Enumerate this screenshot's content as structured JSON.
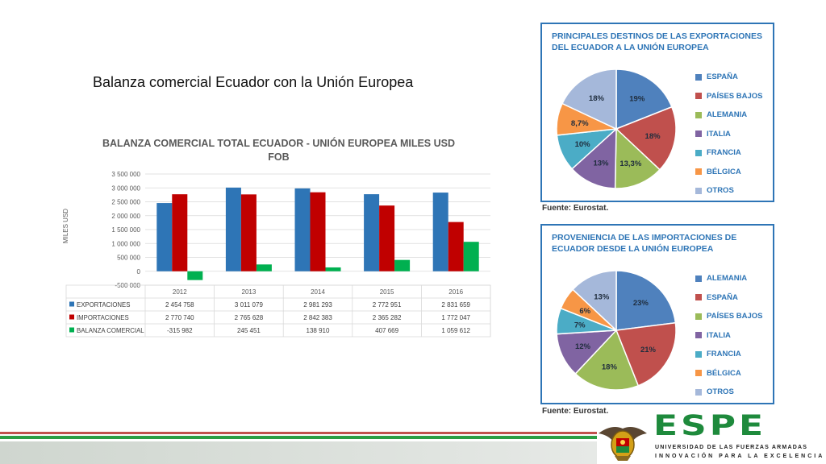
{
  "slide": {
    "title": "Balanza comercial Ecuador con la Unión Europea"
  },
  "colors": {
    "exportaciones": "#2e75b6",
    "importaciones": "#c00000",
    "balanza": "#00b050",
    "panel_border": "#2e75b6",
    "espe_green": "#1e8a3c"
  },
  "chart_data": [
    {
      "type": "bar",
      "title": "BALANZA COMERCIAL TOTAL ECUADOR - UNIÓN EUROPEA MILES USD FOB",
      "ylabel": "MILES USD",
      "xlabel": "",
      "ylim": [
        -500000,
        3500000
      ],
      "yticks": [
        "3 500 000",
        "3 000 000",
        "2 500 000",
        "2 000 000",
        "1 500 000",
        "1 000 000",
        "500 000",
        "0",
        "-500 000"
      ],
      "ytick_values": [
        3500000,
        3000000,
        2500000,
        2000000,
        1500000,
        1000000,
        500000,
        0,
        -500000
      ],
      "categories": [
        "2012",
        "2013",
        "2014",
        "2015",
        "2016"
      ],
      "series": [
        {
          "name": "EXPORTACIONES",
          "values": [
            2454758,
            3011079,
            2981293,
            2772951,
            2831659
          ],
          "labels": [
            "2 454 758",
            "3 011 079",
            "2 981 293",
            "2 772 951",
            "2 831 659"
          ]
        },
        {
          "name": "IMPORTACIONES",
          "values": [
            2770740,
            2765628,
            2842383,
            2365282,
            1772047
          ],
          "labels": [
            "2 770 740",
            "2 765 628",
            "2 842 383",
            "2 365 282",
            "1 772 047"
          ]
        },
        {
          "name": "BALANZA COMERCIAL",
          "values": [
            -315982,
            245451,
            138910,
            407669,
            1059612
          ],
          "labels": [
            "-315 982",
            "245 451",
            "138 910",
            "407 669",
            "1 059 612"
          ]
        }
      ],
      "grid": true,
      "legend": "data-table"
    },
    {
      "type": "pie",
      "title": "PRINCIPALES DESTINOS DE LAS EXPORTACIONES DEL ECUADOR A LA UNIÓN EUROPEA",
      "categories": [
        "ESPAÑA",
        "PAÍSES BAJOS",
        "ALEMANIA",
        "ITALIA",
        "FRANCIA",
        "BÉLGICA",
        "OTROS"
      ],
      "values": [
        19,
        18,
        13.3,
        13,
        10,
        8.7,
        18
      ],
      "labels": [
        "19%",
        "18%",
        "13,3%",
        "13%",
        "10%",
        "8,7%",
        "18%"
      ],
      "colors": [
        "#4f81bd",
        "#c0504d",
        "#9bbb59",
        "#8064a2",
        "#4bacc6",
        "#f79646",
        "#a5b8da"
      ],
      "legend": "right"
    },
    {
      "type": "pie",
      "title": "PROVENIENCIA DE LAS IMPORTACIONES DE ECUADOR DESDE LA UNIÓN EUROPEA",
      "categories": [
        "ALEMANIA",
        "ESPAÑA",
        "PAÍSES BAJOS",
        "ITALIA",
        "FRANCIA",
        "BÉLGICA",
        "OTROS"
      ],
      "values": [
        23,
        21,
        18,
        12,
        7,
        6,
        13
      ],
      "labels": [
        "23%",
        "21%",
        "18%",
        "12%",
        "7%",
        "6%",
        "13%"
      ],
      "colors": [
        "#4f81bd",
        "#c0504d",
        "#9bbb59",
        "#8064a2",
        "#4bacc6",
        "#f79646",
        "#a5b8da"
      ],
      "legend": "right"
    }
  ],
  "sources": {
    "top": "Fuente: Eurostat.",
    "bottom": "Fuente: Eurostat."
  },
  "footer": {
    "logo_text": "ESPE",
    "subtitle_1": "UNIVERSIDAD DE LAS FUERZAS ARMADAS",
    "subtitle_2": "INNOVACIÓN PARA LA EXCELENCIA"
  }
}
